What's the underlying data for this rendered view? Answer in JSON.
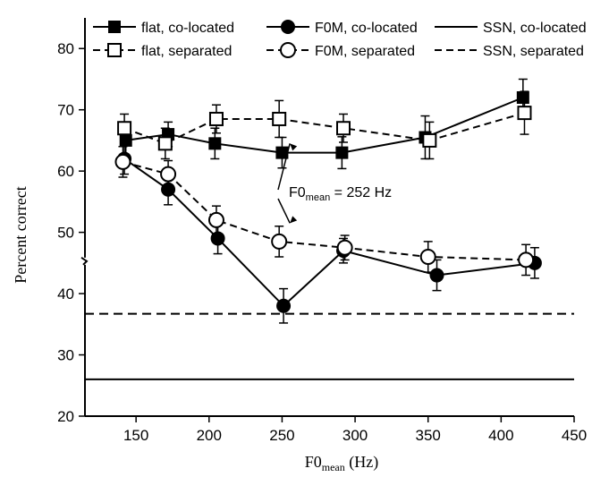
{
  "chart_data": {
    "type": "line",
    "xlabel_main": "F0",
    "xlabel_sub": "mean",
    "xlabel_unit": " (Hz)",
    "ylabel": "Percent correct",
    "xlim": [
      115,
      450
    ],
    "ylim": [
      20,
      85
    ],
    "xticks": [
      150,
      200,
      250,
      300,
      350,
      400,
      450
    ],
    "yticks": [
      20,
      30,
      40,
      50,
      60,
      70,
      80
    ],
    "axis_break_y": 45,
    "annotation": {
      "main": "F0",
      "sub": "mean",
      "rest": " = 252 Hz",
      "points_to": [
        {
          "x": 248,
          "y": 64.5
        },
        {
          "x": 248,
          "y": 51.5
        }
      ]
    },
    "series": [
      {
        "name": "flat, co-located",
        "marker": "filled-square",
        "line": "solid",
        "x": [
          143,
          172,
          204,
          250,
          291,
          348,
          415
        ],
        "y": [
          65.0,
          66.0,
          64.5,
          63.0,
          63.0,
          65.5,
          72.0
        ],
        "err": [
          2.8,
          2.0,
          2.5,
          2.5,
          2.6,
          3.5,
          3.0
        ]
      },
      {
        "name": "flat, separated",
        "marker": "open-square",
        "line": "dashed",
        "x": [
          142,
          170,
          205,
          248,
          292,
          351,
          416
        ],
        "y": [
          67.0,
          64.5,
          68.5,
          68.5,
          67.0,
          65.0,
          69.5
        ],
        "err": [
          2.3,
          2.5,
          2.3,
          3.0,
          2.3,
          3.0,
          3.5
        ]
      },
      {
        "name": "F0M, co-located",
        "marker": "filled-circle",
        "line": "solid",
        "x": [
          142,
          172,
          206,
          251,
          292,
          356,
          423
        ],
        "y": [
          62.0,
          57.0,
          49.0,
          38.0,
          47.0,
          43.0,
          45.0
        ],
        "err": [
          2.5,
          2.5,
          2.5,
          2.8,
          2.0,
          2.5,
          2.5
        ]
      },
      {
        "name": "F0M, separated",
        "marker": "open-circle",
        "line": "dashed",
        "x": [
          141,
          172,
          205,
          248,
          293,
          350,
          417
        ],
        "y": [
          61.5,
          59.5,
          52.0,
          48.5,
          47.5,
          46.0,
          45.5
        ],
        "err": [
          2.5,
          2.2,
          2.3,
          2.5,
          2.0,
          2.5,
          2.5
        ]
      },
      {
        "name": "SSN, co-located",
        "marker": "none",
        "line": "solid",
        "constant": 26.0
      },
      {
        "name": "SSN, separated",
        "marker": "none",
        "line": "dashed",
        "constant": 36.7
      }
    ]
  }
}
